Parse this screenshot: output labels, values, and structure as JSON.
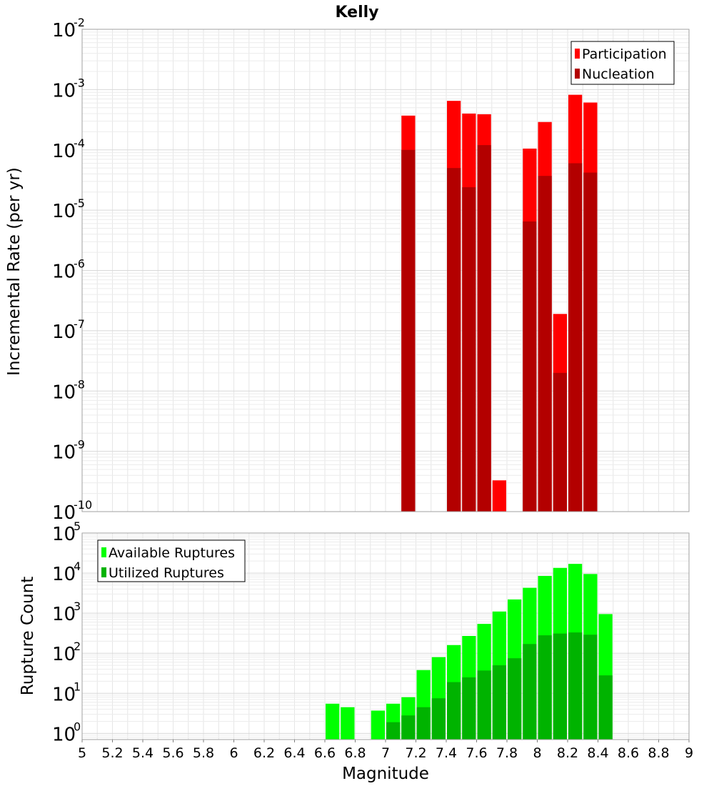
{
  "chart_data": [
    {
      "type": "bar",
      "title": "Kelly",
      "xlabel": "",
      "ylabel": "Incremental Rate (per yr)",
      "yscale": "log",
      "ylim": [
        1e-10,
        0.01
      ],
      "xlim": [
        5,
        9
      ],
      "bin_width": 0.1,
      "legend_position": "top-right",
      "series": [
        {
          "name": "Participation",
          "color": "#ff0000",
          "x": [
            7.15,
            7.45,
            7.55,
            7.65,
            7.75,
            7.95,
            8.05,
            8.15,
            8.25,
            8.35
          ],
          "values": [
            0.00037,
            0.00065,
            0.0004,
            0.00039,
            3.3e-10,
            0.000105,
            0.00029,
            1.9e-07,
            0.00082,
            0.00061
          ]
        },
        {
          "name": "Nucleation",
          "color": "#b30000",
          "x": [
            7.15,
            7.45,
            7.55,
            7.65,
            7.95,
            8.05,
            8.15,
            8.25,
            8.35
          ],
          "values": [
            0.0001,
            5e-05,
            2.4e-05,
            0.00012,
            6.5e-06,
            3.7e-05,
            2e-08,
            6e-05,
            4.2e-05
          ]
        }
      ]
    },
    {
      "type": "bar",
      "title": "",
      "xlabel": "Magnitude",
      "ylabel": "Rupture Count",
      "yscale": "log",
      "ylim": [
        0.7,
        100000.0
      ],
      "xlim": [
        5,
        9
      ],
      "bin_width": 0.1,
      "legend_position": "top-left",
      "series": [
        {
          "name": "Available Ruptures",
          "color": "#00ff00",
          "x": [
            6.65,
            6.75,
            6.95,
            7.05,
            7.15,
            7.25,
            7.35,
            7.45,
            7.55,
            7.65,
            7.75,
            7.85,
            7.95,
            8.05,
            8.15,
            8.25,
            8.35,
            8.45
          ],
          "values": [
            5.5,
            4.5,
            3.7,
            5.5,
            8,
            38,
            80,
            160,
            270,
            540,
            1100,
            2200,
            4300,
            8500,
            13500,
            17000,
            9500,
            950
          ]
        },
        {
          "name": "Utilized Ruptures",
          "color": "#00b300",
          "x": [
            7.05,
            7.15,
            7.25,
            7.35,
            7.45,
            7.55,
            7.65,
            7.75,
            7.85,
            7.95,
            8.05,
            8.15,
            8.25,
            8.35,
            8.45
          ],
          "values": [
            1.9,
            2.8,
            4.5,
            7.5,
            19,
            25,
            37,
            50,
            75,
            170,
            280,
            310,
            330,
            290,
            28
          ]
        }
      ]
    }
  ],
  "ticks": {
    "x": [
      "5",
      "5.2",
      "5.4",
      "5.6",
      "5.8",
      "6",
      "6.2",
      "6.4",
      "6.6",
      "6.8",
      "7",
      "7.2",
      "7.4",
      "7.6",
      "7.8",
      "8",
      "8.2",
      "8.4",
      "8.6",
      "8.8",
      "9"
    ],
    "top_y_exponents": [
      "-2",
      "-3",
      "-4",
      "-5",
      "-6",
      "-7",
      "-8",
      "-9",
      "-10"
    ],
    "bottom_y_exponents": [
      "5",
      "4",
      "3",
      "2",
      "1",
      "0"
    ],
    "base": "10"
  }
}
